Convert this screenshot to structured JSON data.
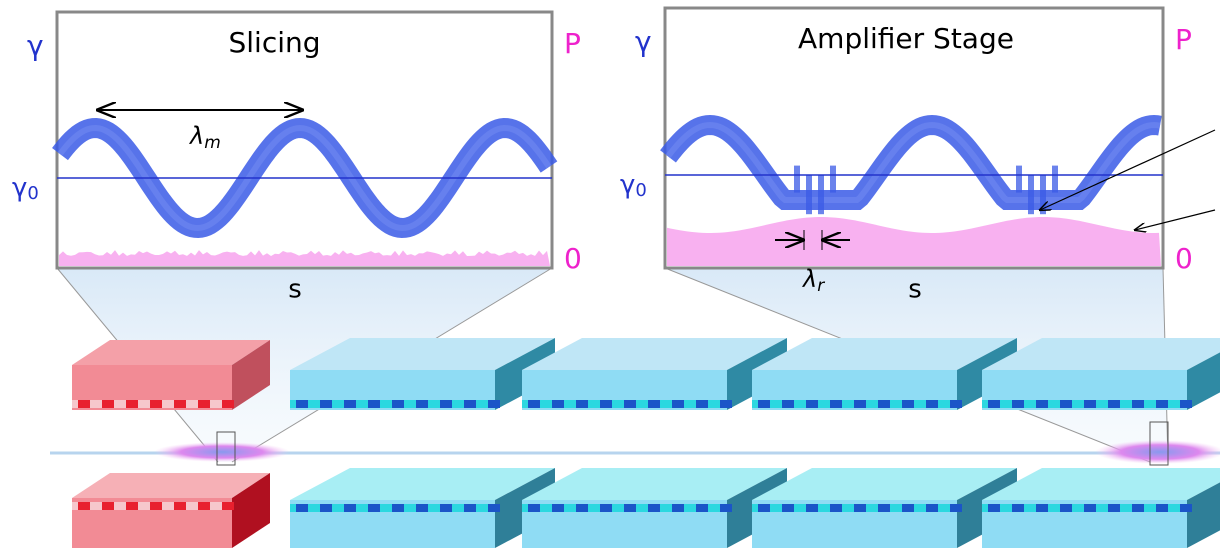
{
  "panels": [
    {
      "title": "Slicing",
      "y_label": "γ",
      "y2_label": "P",
      "y_ref": {
        "symbol": "γ",
        "subscript": "0"
      },
      "y2_zero": "0",
      "x_label": "s",
      "wavelength": {
        "symbol": "λ",
        "subscript": "m"
      }
    },
    {
      "title": "Amplifier Stage",
      "y_label": "γ",
      "y2_label": "P",
      "y_ref": {
        "symbol": "γ",
        "subscript": "0"
      },
      "y2_zero": "0",
      "x_label": "s",
      "wavelength": {
        "symbol": "λ",
        "subscript": "r"
      }
    }
  ]
}
